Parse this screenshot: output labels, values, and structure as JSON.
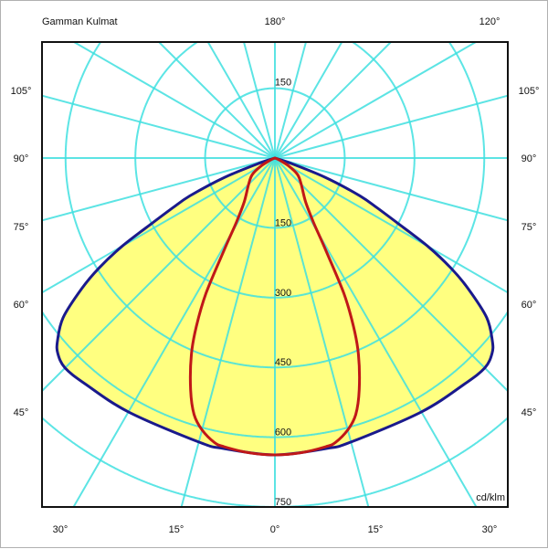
{
  "chart_data": {
    "type": "polar",
    "title": "Gamman Kulmat",
    "unit": "cd/klm",
    "top_labels": [
      "180°",
      "120°"
    ],
    "side_angle_labels": [
      "105°",
      "90°",
      "75°",
      "60°",
      "45°"
    ],
    "bottom_angle_labels": [
      "30°",
      "15°",
      "0°",
      "15°",
      "30°"
    ],
    "radial_ticks_upper": [
      150
    ],
    "radial_ticks_lower": [
      150,
      300,
      450,
      600,
      750
    ],
    "radial_max": 750,
    "angle_step_deg": 15,
    "grid": true,
    "fill_color": "#ffff80",
    "grid_color": "#40e0e0",
    "series": [
      {
        "color": "#1a1a8c",
        "points": [
          [
            0,
            638
          ],
          [
            10,
            634
          ],
          [
            15,
            632
          ],
          [
            30,
            630
          ],
          [
            40,
            634
          ],
          [
            45,
            638
          ],
          [
            48,
            628
          ],
          [
            50,
            610
          ],
          [
            53,
            570
          ],
          [
            56,
            500
          ],
          [
            58,
            446
          ],
          [
            60,
            380
          ],
          [
            62,
            300
          ],
          [
            64,
            245
          ],
          [
            66,
            200
          ],
          [
            69,
            115
          ],
          [
            72,
            30
          ],
          [
            74,
            0
          ]
        ]
      },
      {
        "color": "#c01818",
        "points": [
          [
            0,
            638
          ],
          [
            5,
            636
          ],
          [
            10,
            630
          ],
          [
            12,
            625
          ],
          [
            15,
            605
          ],
          [
            17.5,
            578
          ],
          [
            20,
            530
          ],
          [
            23,
            460
          ],
          [
            25,
            400
          ],
          [
            27,
            326
          ],
          [
            29,
            221
          ],
          [
            31,
            160
          ],
          [
            35,
            115
          ],
          [
            45,
            80
          ],
          [
            54,
            60
          ],
          [
            60,
            35
          ],
          [
            66,
            10
          ],
          [
            70,
            0
          ]
        ]
      }
    ]
  }
}
